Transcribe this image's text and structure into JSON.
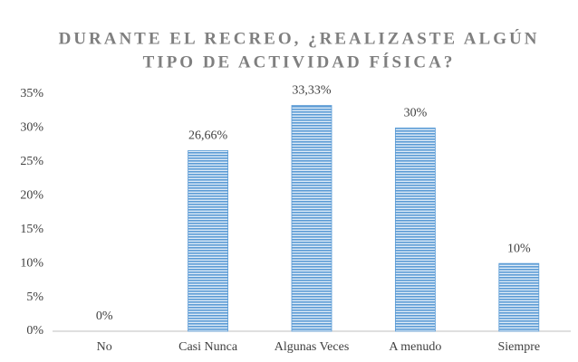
{
  "chart_data": {
    "type": "bar",
    "title": [
      "DURANTE EL RECREO, ¿REALIZASTE ALGÚN",
      "TIPO DE ACTIVIDAD FÍSICA?"
    ],
    "categories": [
      "No",
      "Casi Nunca",
      "Algunas Veces",
      "A menudo",
      "Siempre"
    ],
    "values": [
      0,
      26.66,
      33.33,
      30,
      10
    ],
    "value_labels": [
      "0%",
      "26,66%",
      "33,33%",
      "30%",
      "10%"
    ],
    "color": "#5b9bd5",
    "ylim": [
      0,
      35
    ],
    "yticks": [
      {
        "value": 0,
        "label": "0%"
      },
      {
        "value": 5,
        "label": "5%"
      },
      {
        "value": 10,
        "label": "10%"
      },
      {
        "value": 15,
        "label": "15%"
      },
      {
        "value": 20,
        "label": "20%"
      },
      {
        "value": 25,
        "label": "25%"
      },
      {
        "value": 30,
        "label": "30%"
      },
      {
        "value": 35,
        "label": "35%"
      }
    ],
    "grid": false
  }
}
